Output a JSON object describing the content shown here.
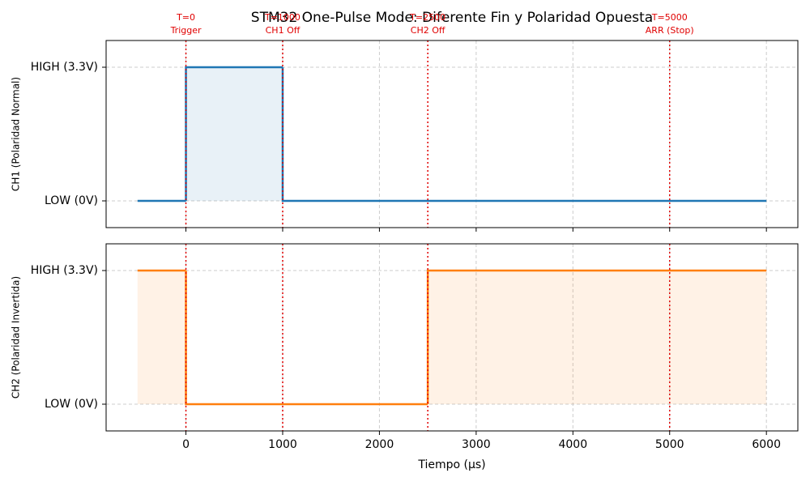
{
  "chart_data": [
    {
      "type": "step",
      "title": "STM32 One-Pulse Mode: Diferente Fin y Polaridad Opuesta",
      "ylabel": "CH1 (Polaridad Normal)",
      "x": [
        -500,
        0,
        1000,
        6000
      ],
      "series": [
        {
          "name": "CH1",
          "color": "#1f77b4",
          "values": [
            0,
            1,
            0,
            0
          ]
        }
      ],
      "fill": true,
      "xlim": [
        -825,
        6325
      ],
      "xticks": [
        0,
        1000,
        2000,
        3000,
        4000,
        5000,
        6000
      ],
      "ylim": [
        -0.2,
        1.2
      ],
      "yticks": [
        {
          "value": 0,
          "label": "LOW (0V)"
        },
        {
          "value": 1,
          "label": "HIGH (3.3V)"
        }
      ],
      "grid": true,
      "annotations": [
        {
          "x": 0,
          "lines": [
            "T=0",
            "Trigger"
          ]
        },
        {
          "x": 1000,
          "lines": [
            "T=1000",
            "CH1 Off"
          ]
        },
        {
          "x": 2500,
          "lines": [
            "T=2500",
            "CH2 Off"
          ]
        },
        {
          "x": 5000,
          "lines": [
            "T=5000",
            "ARR (Stop)"
          ]
        }
      ],
      "annotation_color": "#e00000"
    },
    {
      "type": "step",
      "ylabel": "CH2 (Polaridad Invertida)",
      "xlabel": "Tiempo (μs)",
      "x": [
        -500,
        0,
        2500,
        6000
      ],
      "series": [
        {
          "name": "CH2",
          "color": "#ff7f0e",
          "values": [
            1,
            0,
            1,
            1
          ]
        }
      ],
      "fill": true,
      "xlim": [
        -825,
        6325
      ],
      "xticks": [
        0,
        1000,
        2000,
        3000,
        4000,
        5000,
        6000
      ],
      "ylim": [
        -0.2,
        1.2
      ],
      "yticks": [
        {
          "value": 0,
          "label": "LOW (0V)"
        },
        {
          "value": 1,
          "label": "HIGH (3.3V)"
        }
      ],
      "grid": true,
      "vlines": [
        0,
        1000,
        2500,
        5000
      ],
      "annotation_color": "#e00000"
    }
  ]
}
